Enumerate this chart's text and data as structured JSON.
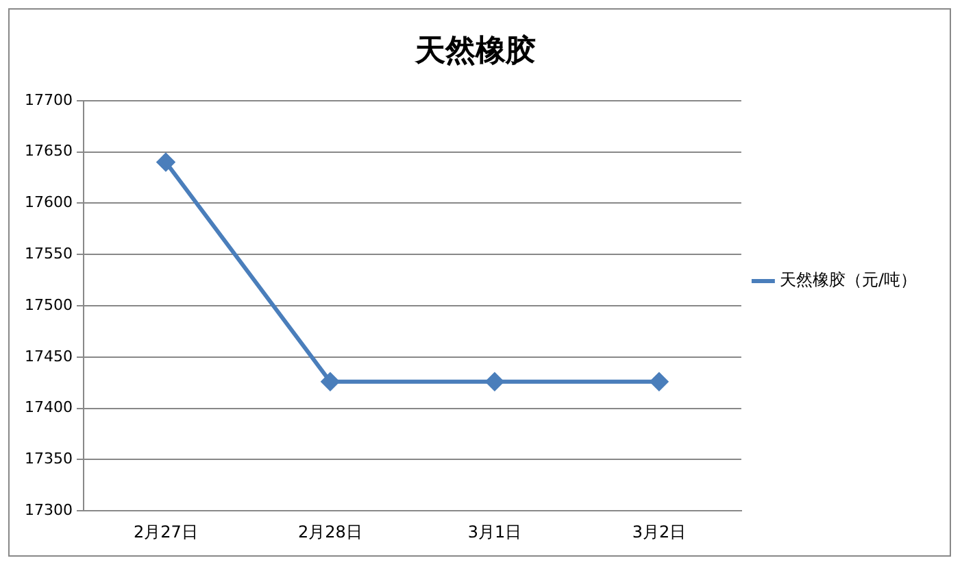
{
  "chart_data": {
    "type": "line",
    "title": "天然橡胶",
    "categories": [
      "2月27日",
      "2月28日",
      "3月1日",
      "3月2日"
    ],
    "series": [
      {
        "name": "天然橡胶（元/吨）",
        "color": "#4a7ebb",
        "values": [
          17640,
          17426,
          17426,
          17426
        ]
      }
    ],
    "ylim": [
      17300,
      17700
    ],
    "yticks": [
      17300,
      17350,
      17400,
      17450,
      17500,
      17550,
      17600,
      17650,
      17700
    ],
    "grid": "y",
    "legend": "right",
    "marker": "diamond",
    "line_style": "solid"
  }
}
